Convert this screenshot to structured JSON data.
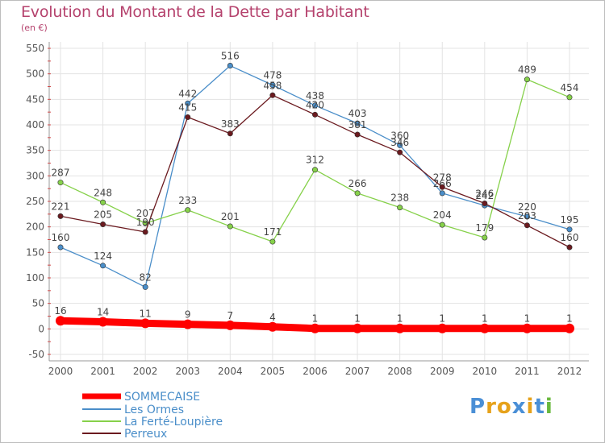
{
  "title": "Evolution du Montant de la Dette par Habitant",
  "subtitle": "(en €)",
  "logo": {
    "text": "Proxiti",
    "colors": [
      "#4a8fd6",
      "#e6a21b",
      "#e6a21b",
      "#4a8fd6",
      "#e6a21b",
      "#4a8fd6",
      "#6ab83e"
    ]
  },
  "chart_data": {
    "type": "line",
    "x": [
      "2000",
      "2001",
      "2002",
      "2003",
      "2004",
      "2005",
      "2006",
      "2007",
      "2008",
      "2009",
      "2010",
      "2011",
      "2012"
    ],
    "ylim": [
      -50,
      550
    ],
    "yticks": [
      -50,
      0,
      50,
      100,
      150,
      200,
      250,
      300,
      350,
      400,
      450,
      500,
      550
    ],
    "grid": true,
    "legend_position": "bottom-left",
    "series": [
      {
        "name": "SOMMECAISE",
        "color": "#ff0000",
        "values": [
          16,
          14,
          11,
          9,
          7,
          4,
          1,
          1,
          1,
          1,
          1,
          1,
          1
        ],
        "labels": [
          "16",
          "14",
          "11",
          "9",
          "7",
          "4",
          "1",
          "1",
          "1",
          "1",
          "1",
          "1",
          "1"
        ],
        "bold": true
      },
      {
        "name": "Les Ormes",
        "color": "#4a8ec9",
        "values": [
          160,
          124,
          82,
          442,
          516,
          478,
          438,
          403,
          360,
          266,
          242,
          220,
          195
        ],
        "labels": [
          "160",
          "124",
          "82",
          "442",
          "516",
          "478",
          "438",
          "403",
          "360",
          "266",
          "242",
          "220",
          "195"
        ]
      },
      {
        "name": "La Ferté-Loupière",
        "color": "#86d14a",
        "values": [
          287,
          248,
          207,
          233,
          201,
          171,
          312,
          266,
          238,
          204,
          179,
          489,
          454
        ],
        "labels": [
          "287",
          "248",
          "207",
          "233",
          "201",
          "171",
          "312",
          "266",
          "238",
          "204",
          "179",
          "489",
          "454"
        ]
      },
      {
        "name": "Perreux",
        "color": "#6b1a1f",
        "values": [
          221,
          205,
          190,
          415,
          383,
          458,
          420,
          381,
          346,
          278,
          246,
          203,
          160
        ],
        "labels": [
          "221",
          "205",
          "190",
          "415",
          "383",
          "458",
          "420",
          "381",
          "346",
          "278",
          "246",
          "203",
          "160"
        ]
      }
    ]
  }
}
